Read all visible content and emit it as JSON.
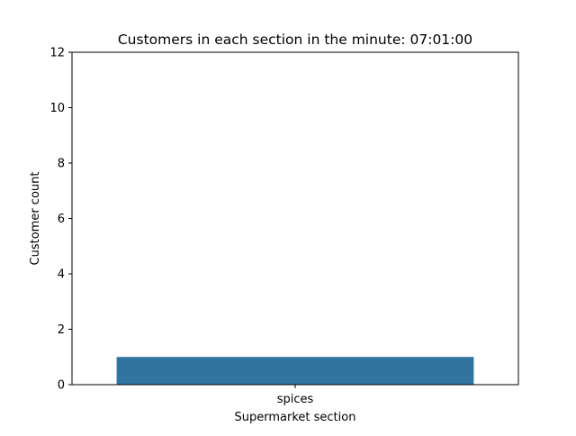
{
  "chart_data": {
    "type": "bar",
    "title": "Customers in each section in the minute: 07:01:00",
    "xlabel": "Supermarket section",
    "ylabel": "Customer count",
    "categories": [
      "spices"
    ],
    "values": [
      1
    ],
    "ylim": [
      0,
      12
    ],
    "yticks": [
      "0",
      "2",
      "4",
      "6",
      "8",
      "10",
      "12"
    ],
    "grid": false,
    "bar_color": "#3274a1"
  }
}
